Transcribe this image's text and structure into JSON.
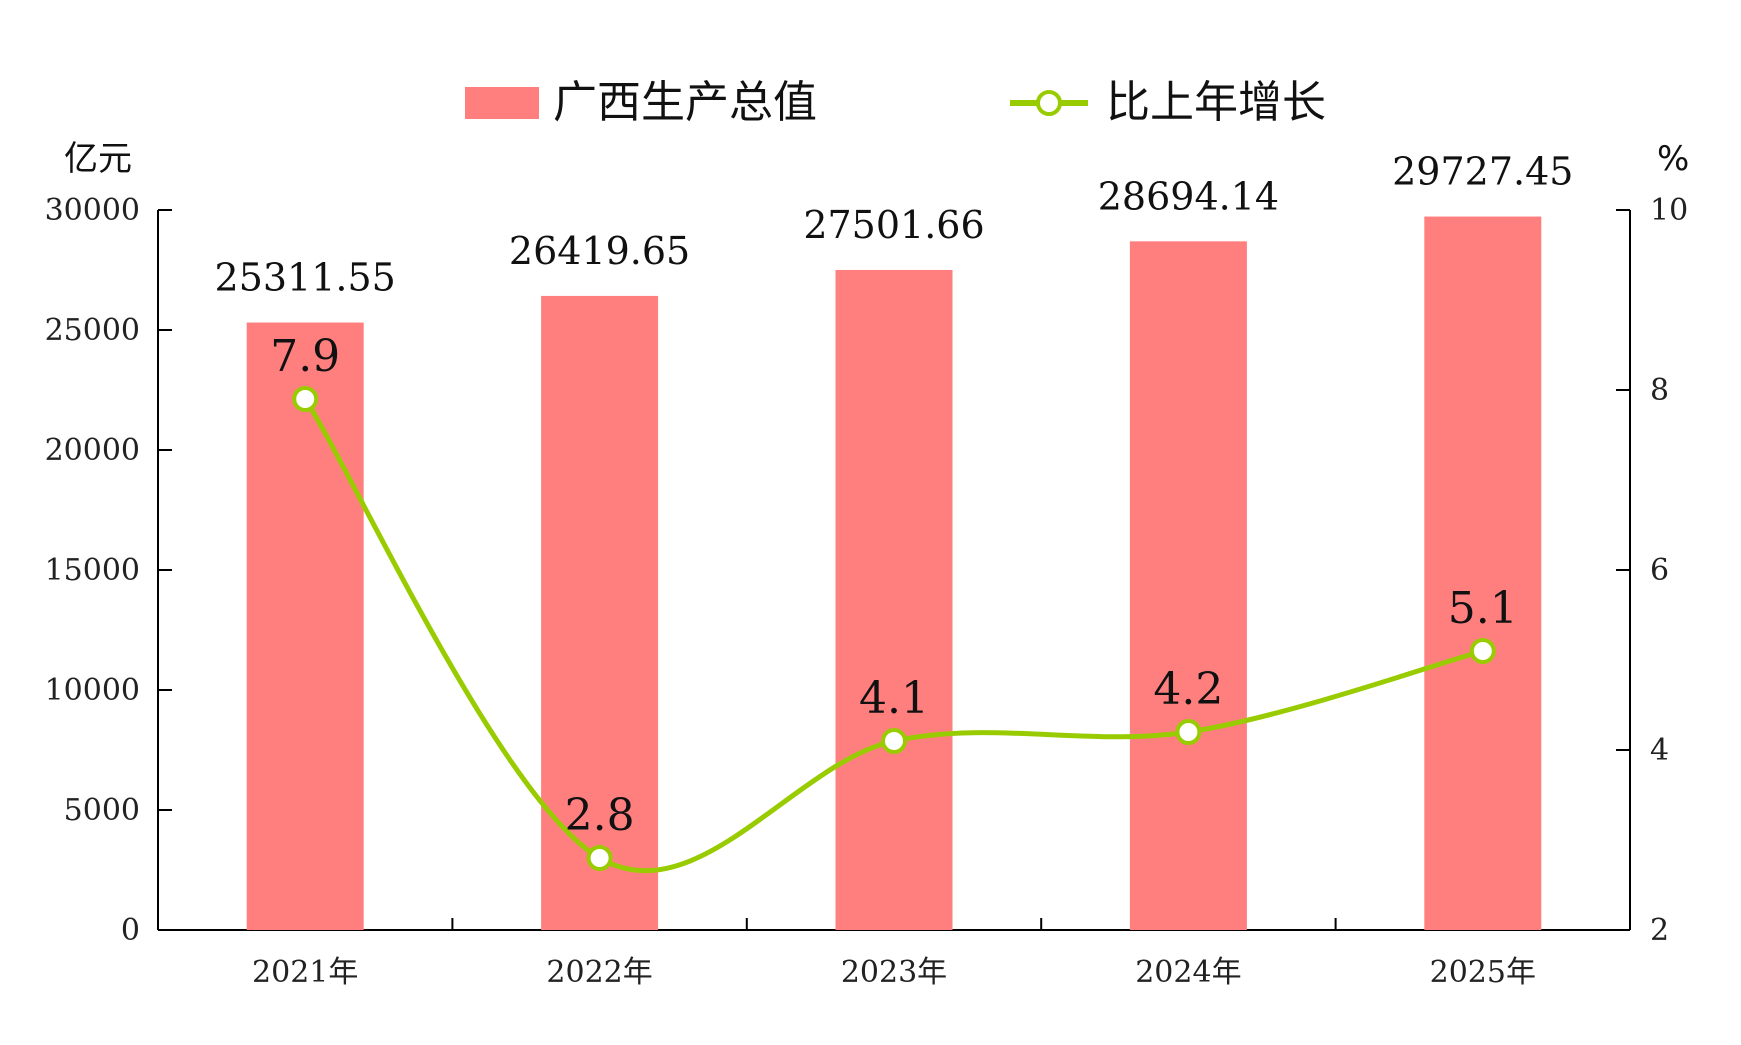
{
  "chart_data": {
    "type": "bar",
    "categories": [
      "2021年",
      "2022年",
      "2023年",
      "2024年",
      "2025年"
    ],
    "series": [
      {
        "name": "广西生产总值",
        "type": "bar",
        "axis": "left",
        "values": [
          25311.55,
          26419.65,
          27501.66,
          28694.14,
          29727.45
        ],
        "labels": [
          "25311.55",
          "26419.65",
          "27501.66",
          "28694.14",
          "29727.45"
        ]
      },
      {
        "name": "比上年增长",
        "type": "line",
        "axis": "right",
        "smooth": true,
        "values": [
          7.9,
          2.8,
          4.1,
          4.2,
          5.1
        ],
        "labels": [
          "7.9",
          "2.8",
          "4.1",
          "4.2",
          "5.1"
        ]
      }
    ],
    "y_left": {
      "label": "亿元",
      "ylim": [
        0,
        30000
      ],
      "ticks": [
        0,
        5000,
        10000,
        15000,
        20000,
        25000,
        30000
      ],
      "tick_labels": [
        "0",
        "5000",
        "10000",
        "15000",
        "20000",
        "25000",
        "30000"
      ]
    },
    "y_right": {
      "label": "%",
      "ylim": [
        2,
        10
      ],
      "ticks": [
        2,
        4,
        6,
        8,
        10
      ],
      "tick_labels": [
        "2",
        "4",
        "6",
        "8",
        "10"
      ]
    },
    "grid": false,
    "legend": "top-center",
    "colors": {
      "bar": "#ff7f7f",
      "line": "#99cc00",
      "marker_fill": "#ffffff",
      "axis": "#000000"
    }
  }
}
